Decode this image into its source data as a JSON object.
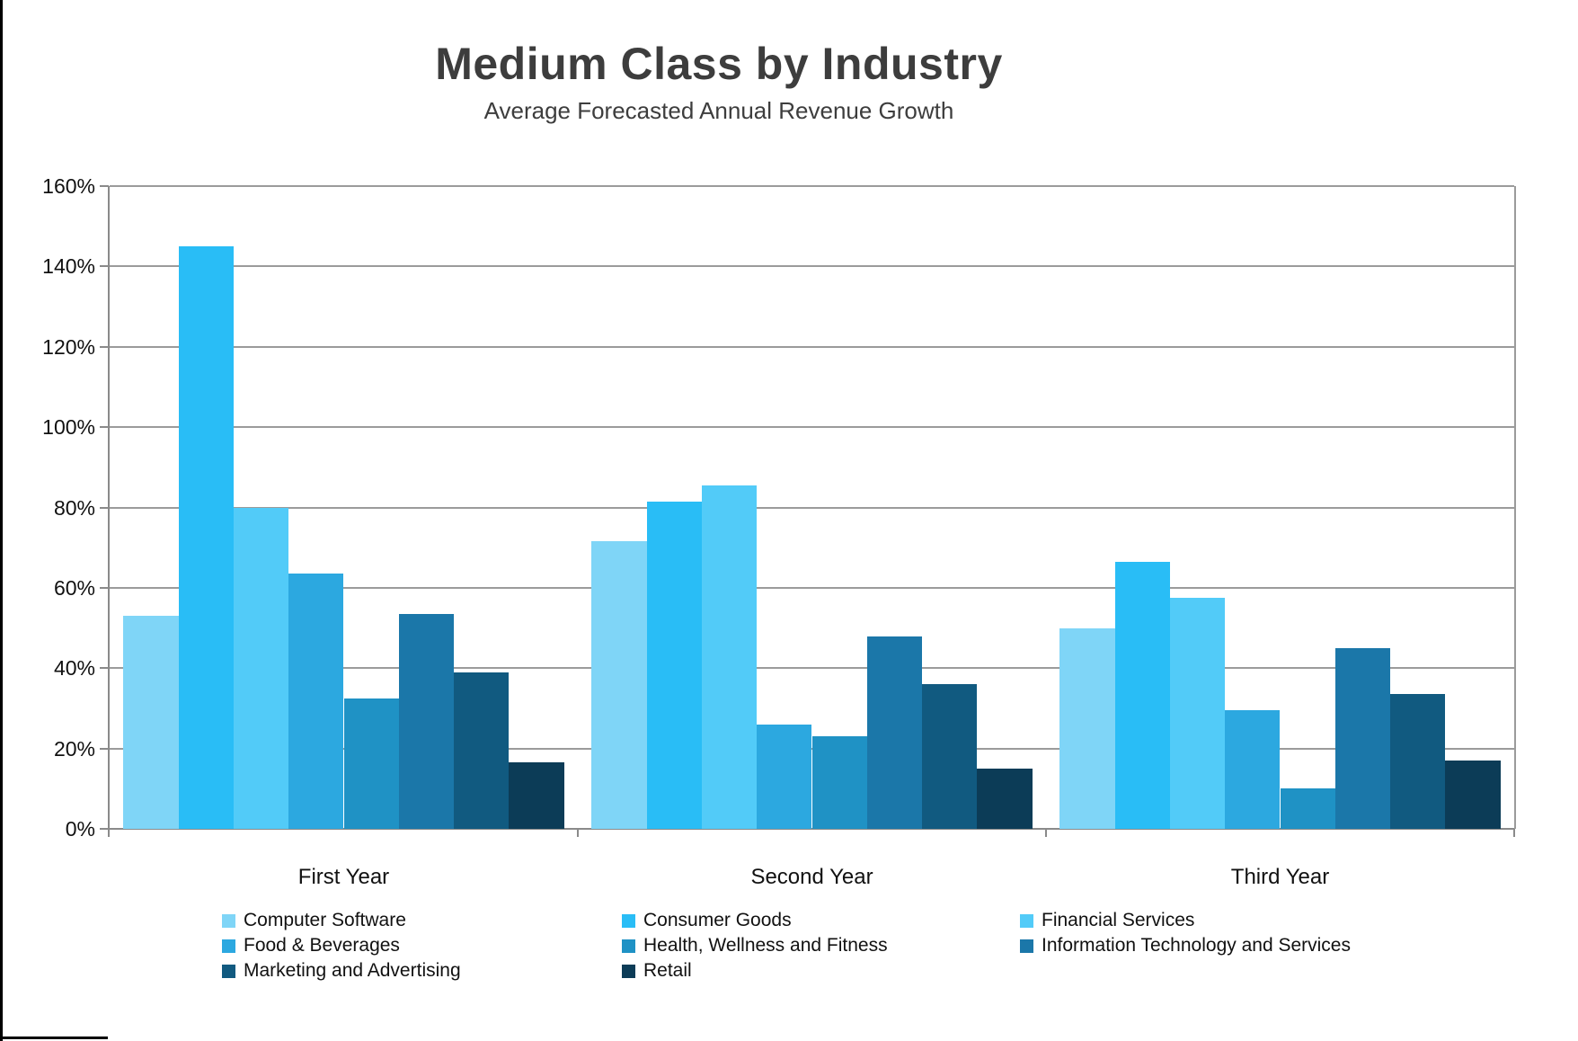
{
  "chart_data": {
    "type": "bar",
    "title": "Medium Class by Industry",
    "subtitle": "Average Forecasted Annual Revenue Growth",
    "categories": [
      "First Year",
      "Second Year",
      "Third Year"
    ],
    "series": [
      {
        "name": "Computer Software",
        "color": "#7FD5F7",
        "values": [
          53,
          71.5,
          50
        ]
      },
      {
        "name": "Consumer Goods",
        "color": "#29BDF6",
        "values": [
          145,
          81.5,
          66.5
        ]
      },
      {
        "name": "Financial Services",
        "color": "#52CBF8",
        "values": [
          80,
          85.5,
          57.5
        ]
      },
      {
        "name": "Food & Beverages",
        "color": "#2CA8E0",
        "values": [
          63.5,
          26,
          29.5
        ]
      },
      {
        "name": "Health, Wellness and Fitness",
        "color": "#1F92C5",
        "values": [
          32.5,
          23,
          10
        ]
      },
      {
        "name": "Information Technology and Services",
        "color": "#1B77A9",
        "values": [
          53.5,
          48,
          45
        ]
      },
      {
        "name": "Marketing and Advertising",
        "color": "#115A80",
        "values": [
          39,
          36,
          33.5
        ]
      },
      {
        "name": "Retail",
        "color": "#0C3C57",
        "values": [
          16.5,
          15,
          17
        ]
      }
    ],
    "ylim": [
      0,
      160
    ],
    "y_tick_step": 20,
    "y_tick_labels": [
      "0%",
      "20%",
      "40%",
      "60%",
      "80%",
      "100%",
      "120%",
      "140%",
      "160%"
    ],
    "grid": true,
    "legend_position": "bottom",
    "legend_columns": [
      [
        0,
        3,
        6
      ],
      [
        1,
        4,
        7
      ],
      [
        2,
        5
      ]
    ]
  },
  "style": {
    "gridline_color": "#9b9b9b",
    "axis_color": "#8a8a8a",
    "title_color": "#3d3d3d",
    "label_color": "#111111",
    "frame_color": "#000000"
  }
}
